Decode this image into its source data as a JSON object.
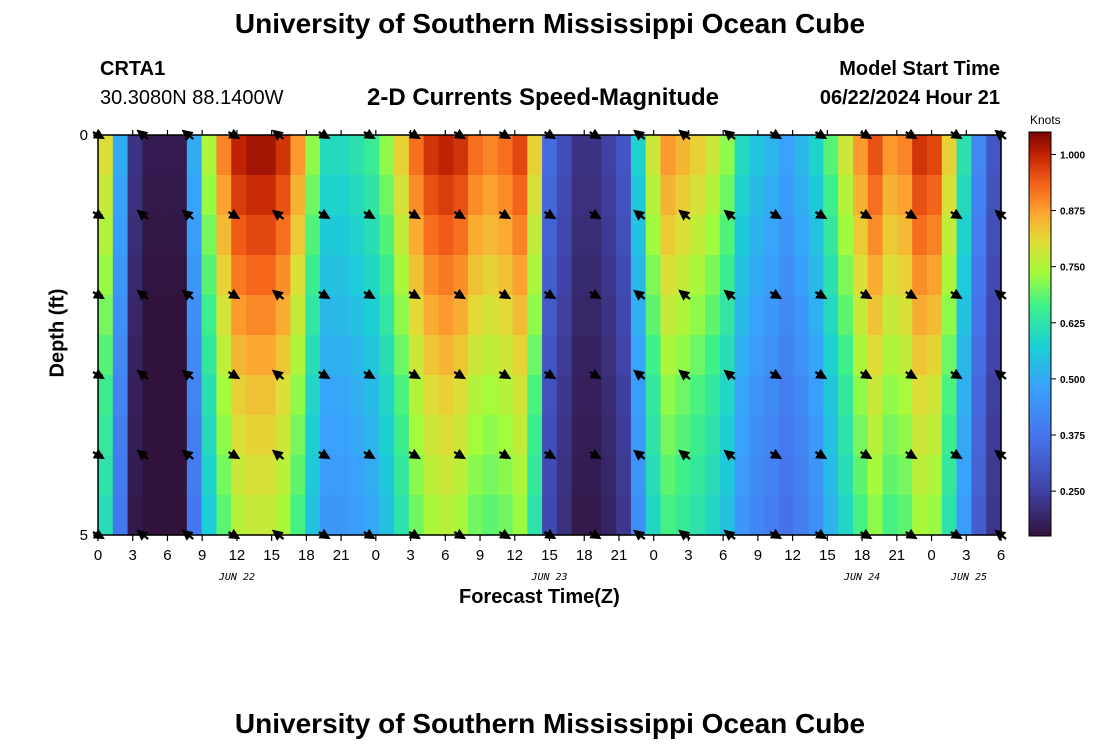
{
  "header": {
    "title": "University of Southern Mississippi Ocean Cube",
    "station": "CRTA1",
    "coords": "30.3080N  88.1400W",
    "model_start_label": "Model Start Time",
    "model_start_value": "06/22/2024 Hour 21",
    "footer_title": "University of Southern Mississippi Ocean Cube"
  },
  "colors": {
    "arrow": "#000000",
    "axis": "#000000"
  },
  "chart_data": {
    "type": "heatmap",
    "title": "2-D Currents Speed-Magnitude",
    "xlabel": "Forecast Time(Z)",
    "ylabel": "Depth (ft)",
    "units": "Knots",
    "y_ticks": [
      "0",
      "5"
    ],
    "ylim": [
      0,
      5
    ],
    "x_ticks": [
      "0",
      "3",
      "6",
      "9",
      "12",
      "15",
      "18",
      "21",
      "0",
      "3",
      "6",
      "9",
      "12",
      "15",
      "18",
      "21",
      "0",
      "3",
      "6",
      "9",
      "12",
      "15",
      "18",
      "21",
      "0",
      "3",
      "6"
    ],
    "date_labels": [
      {
        "label": "JUN 22",
        "tick_index": 4
      },
      {
        "label": "JUN 23",
        "tick_index": 13
      },
      {
        "label": "JUN 24",
        "tick_index": 22
      },
      {
        "label": "JUN 25",
        "tick_index": 28
      }
    ],
    "colorbar": {
      "ticks": [
        "1.000",
        "0.875",
        "0.750",
        "0.625",
        "0.500",
        "0.375",
        "0.250"
      ],
      "tick_values": [
        1.0,
        0.875,
        0.75,
        0.625,
        0.5,
        0.375,
        0.25
      ],
      "range": [
        0.15,
        1.05
      ]
    },
    "speed_by_hour": [
      0.8,
      0.5,
      0.22,
      0.17,
      0.17,
      0.17,
      0.5,
      0.75,
      0.9,
      1.0,
      1.02,
      1.02,
      0.98,
      0.88,
      0.72,
      0.6,
      0.6,
      0.62,
      0.65,
      0.72,
      0.82,
      0.92,
      0.98,
      1.0,
      0.98,
      0.92,
      0.9,
      0.92,
      0.96,
      0.82,
      0.35,
      0.28,
      0.22,
      0.22,
      0.25,
      0.3,
      0.58,
      0.78,
      0.88,
      0.85,
      0.82,
      0.78,
      0.72,
      0.6,
      0.55,
      0.52,
      0.48,
      0.52,
      0.58,
      0.68,
      0.78,
      0.88,
      0.95,
      0.88,
      0.9,
      0.98,
      0.96,
      0.82,
      0.62,
      0.42,
      0.3
    ],
    "depth_factors": [
      1.0,
      0.97,
      0.94,
      0.91,
      0.88,
      0.85,
      0.82,
      0.8,
      0.78,
      0.76
    ],
    "arrow_columns": [
      {
        "dir": "se"
      },
      {
        "dir": "nw"
      },
      {
        "dir": "nw"
      },
      {
        "dir": "se"
      },
      {
        "dir": "nw"
      },
      {
        "dir": "se"
      },
      {
        "dir": "se"
      },
      {
        "dir": "se"
      },
      {
        "dir": "se"
      },
      {
        "dir": "se"
      },
      {
        "dir": "se"
      },
      {
        "dir": "se"
      },
      {
        "dir": "nw"
      },
      {
        "dir": "nw"
      },
      {
        "dir": "nw"
      },
      {
        "dir": "se"
      },
      {
        "dir": "se"
      },
      {
        "dir": "se"
      },
      {
        "dir": "se"
      },
      {
        "dir": "se"
      },
      {
        "dir": "nw"
      }
    ],
    "arrow_depth_rows": [
      0,
      1,
      2,
      3,
      4,
      5
    ]
  }
}
